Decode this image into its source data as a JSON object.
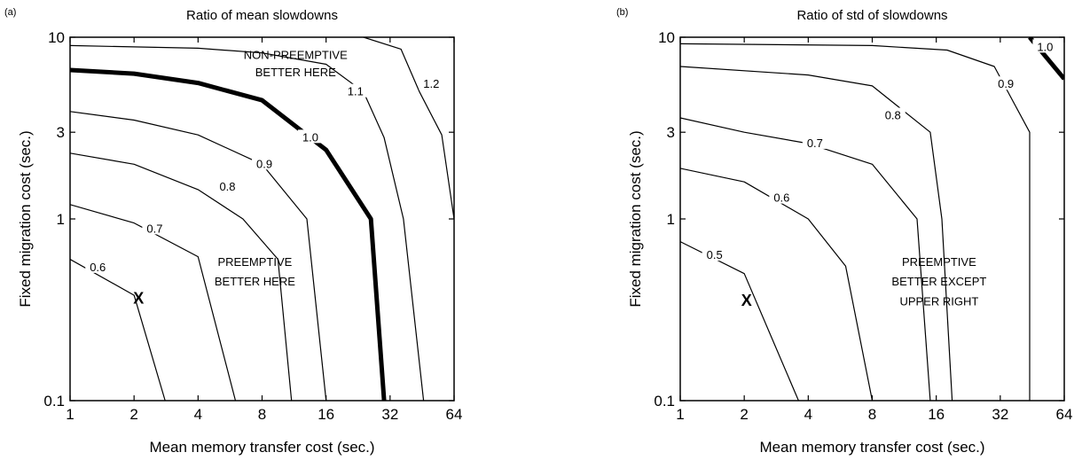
{
  "chart_data": [
    {
      "panel_label": "(a)",
      "type": "contour",
      "title": "Ratio of mean slowdowns",
      "xlabel": "Mean memory transfer cost (sec.)",
      "ylabel": "Fixed migration cost (sec.)",
      "x_scale": "log2",
      "y_scale": "log10",
      "xlim": [
        1,
        64
      ],
      "ylim": [
        0.1,
        10
      ],
      "x_ticks": [
        1,
        2,
        4,
        8,
        16,
        32,
        64
      ],
      "x_tick_labels": [
        "1",
        "2",
        "4",
        "8",
        "16",
        "32",
        "64"
      ],
      "y_ticks": [
        0.1,
        1,
        3,
        10
      ],
      "y_tick_labels": [
        "0.1",
        "1",
        "3",
        "10"
      ],
      "contours": [
        {
          "level": "0.6",
          "bold": false,
          "points": [
            [
              1,
              0.6
            ],
            [
              2,
              0.38
            ],
            [
              2.8,
              0.1
            ]
          ],
          "label_at": [
            1.35,
            0.54
          ]
        },
        {
          "level": "0.7",
          "bold": false,
          "points": [
            [
              1,
              1.2
            ],
            [
              2,
              0.95
            ],
            [
              4,
              0.62
            ],
            [
              6,
              0.1
            ]
          ],
          "label_at": [
            2.5,
            0.88
          ]
        },
        {
          "level": "0.8",
          "bold": false,
          "points": [
            [
              1,
              2.3
            ],
            [
              2,
              2.0
            ],
            [
              4,
              1.45
            ],
            [
              6.5,
              1.0
            ],
            [
              9.5,
              0.6
            ],
            [
              11,
              0.1
            ]
          ],
          "label_at": [
            5.5,
            1.5
          ]
        },
        {
          "level": "0.9",
          "bold": false,
          "points": [
            [
              1,
              3.9
            ],
            [
              2,
              3.5
            ],
            [
              4,
              2.9
            ],
            [
              8,
              2.0
            ],
            [
              13,
              1.0
            ],
            [
              16,
              0.1
            ]
          ],
          "label_at": [
            8.2,
            2.0
          ]
        },
        {
          "level": "1.0",
          "bold": true,
          "points": [
            [
              1,
              6.6
            ],
            [
              2,
              6.3
            ],
            [
              4,
              5.6
            ],
            [
              8,
              4.5
            ],
            [
              16,
              2.4
            ],
            [
              26,
              1.0
            ],
            [
              30,
              0.1
            ]
          ],
          "label_at": [
            13.5,
            2.8
          ]
        },
        {
          "level": "1.1",
          "bold": false,
          "points": [
            [
              1,
              9.0
            ],
            [
              4,
              8.7
            ],
            [
              8,
              8.2
            ],
            [
              16,
              7.1
            ],
            [
              24,
              5.0
            ],
            [
              30,
              2.8
            ],
            [
              37,
              1.0
            ],
            [
              46,
              0.1
            ]
          ],
          "label_at": [
            22,
            5.0
          ]
        },
        {
          "level": "1.2",
          "bold": false,
          "points": [
            [
              24,
              10
            ],
            [
              36,
              8.6
            ],
            [
              44,
              5.0
            ],
            [
              56,
              2.9
            ],
            [
              64,
              1.0
            ]
          ],
          "label_at": [
            50,
            5.5
          ]
        }
      ],
      "annotations": [
        {
          "text": "NON-PREEMPTIVE",
          "at": [
            11.5,
            7.6
          ]
        },
        {
          "text": "BETTER HERE",
          "at": [
            11.5,
            6.1
          ]
        },
        {
          "text": "PREEMPTIVE",
          "at": [
            7.4,
            0.55
          ]
        },
        {
          "text": "BETTER HERE",
          "at": [
            7.4,
            0.43
          ]
        }
      ],
      "marker": {
        "text": "X",
        "at": [
          2.1,
          0.37
        ]
      }
    },
    {
      "panel_label": "(b)",
      "type": "contour",
      "title": "Ratio of std of slowdowns",
      "xlabel": "Mean memory transfer cost (sec.)",
      "ylabel": "Fixed migration cost (sec.)",
      "x_scale": "log2",
      "y_scale": "log10",
      "xlim": [
        1,
        64
      ],
      "ylim": [
        0.1,
        10
      ],
      "x_ticks": [
        1,
        2,
        4,
        8,
        16,
        32,
        64
      ],
      "x_tick_labels": [
        "1",
        "2",
        "4",
        "8",
        "16",
        "32",
        "64"
      ],
      "y_ticks": [
        0.1,
        1,
        3,
        10
      ],
      "y_tick_labels": [
        "0.1",
        "1",
        "3",
        "10"
      ],
      "contours": [
        {
          "level": "0.5",
          "bold": false,
          "points": [
            [
              1,
              0.75
            ],
            [
              2,
              0.5
            ],
            [
              3.6,
              0.1
            ]
          ],
          "label_at": [
            1.45,
            0.63
          ]
        },
        {
          "level": "0.6",
          "bold": false,
          "points": [
            [
              1,
              1.9
            ],
            [
              2,
              1.6
            ],
            [
              4,
              1.0
            ],
            [
              6,
              0.55
            ],
            [
              8,
              0.1
            ]
          ],
          "label_at": [
            3.0,
            1.3
          ]
        },
        {
          "level": "0.7",
          "bold": false,
          "points": [
            [
              1,
              3.6
            ],
            [
              2,
              3.0
            ],
            [
              4,
              2.6
            ],
            [
              8,
              2.0
            ],
            [
              13,
              1.0
            ],
            [
              15,
              0.1
            ]
          ],
          "label_at": [
            4.3,
            2.6
          ]
        },
        {
          "level": "0.8",
          "bold": false,
          "points": [
            [
              1,
              6.9
            ],
            [
              4,
              6.2
            ],
            [
              8,
              5.4
            ],
            [
              15,
              3.0
            ],
            [
              17,
              1.0
            ],
            [
              19,
              0.1
            ]
          ],
          "label_at": [
            10,
            3.7
          ]
        },
        {
          "level": "0.9",
          "bold": false,
          "points": [
            [
              1,
              9.2
            ],
            [
              8,
              9.0
            ],
            [
              18,
              8.5
            ],
            [
              30,
              6.9
            ],
            [
              44,
              3.0
            ],
            [
              44,
              1.0
            ],
            [
              44,
              0.1
            ]
          ],
          "label_at": [
            34,
            5.5
          ]
        },
        {
          "level": "1.0",
          "bold": true,
          "points": [
            [
              44,
              10
            ],
            [
              64,
              5.9
            ]
          ],
          "label_at": [
            52,
            8.8
          ]
        }
      ],
      "annotations": [
        {
          "text": "PREEMPTIVE",
          "at": [
            16.5,
            0.55
          ]
        },
        {
          "text": "BETTER EXCEPT",
          "at": [
            16.5,
            0.43
          ]
        },
        {
          "text": "UPPER RIGHT",
          "at": [
            16.5,
            0.335
          ]
        }
      ],
      "marker": {
        "text": "X",
        "at": [
          2.05,
          0.36
        ]
      }
    }
  ]
}
